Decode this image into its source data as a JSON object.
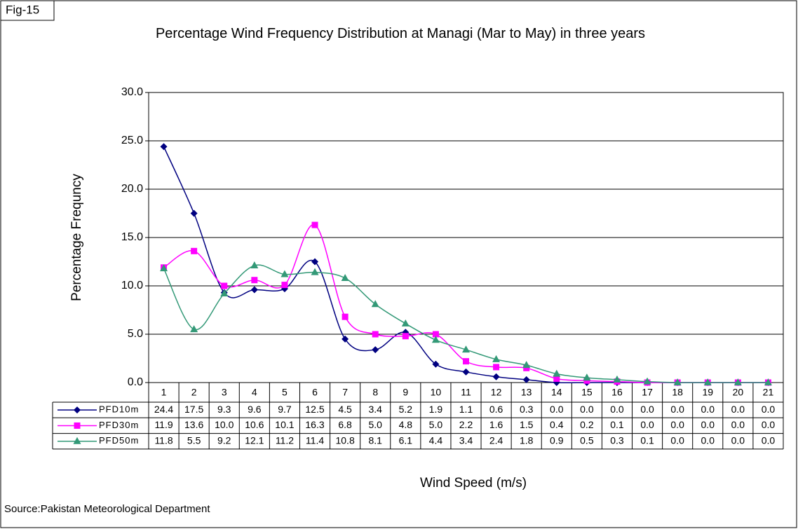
{
  "fig_label": "Fig-15",
  "source": "Source:Pakistan Meteorological Department",
  "chart_data": {
    "type": "line",
    "title": "Percentage Wind Frequency Distribution at Managi (Mar to May) in three years",
    "x_label": "Wind Speed (m/s)",
    "y_label": "Percentage Frequncy",
    "categories": [
      "1",
      "2",
      "3",
      "4",
      "5",
      "6",
      "7",
      "8",
      "9",
      "10",
      "11",
      "12",
      "13",
      "14",
      "15",
      "16",
      "17",
      "18",
      "19",
      "20",
      "21"
    ],
    "ylim": [
      0,
      30
    ],
    "yticks": [
      {
        "value": 0,
        "label": "0.0"
      },
      {
        "value": 5,
        "label": "5.0"
      },
      {
        "value": 10,
        "label": "10.0"
      },
      {
        "value": 15,
        "label": "15.0"
      },
      {
        "value": 20,
        "label": "20.0"
      },
      {
        "value": 25,
        "label": "25.0"
      },
      {
        "value": 30,
        "label": "30.0"
      }
    ],
    "grid": true,
    "series": [
      {
        "name": "PFD10m",
        "color": "#000080",
        "marker": "diamond",
        "values": [
          24.4,
          17.5,
          9.3,
          9.6,
          9.7,
          12.5,
          4.5,
          3.4,
          5.2,
          1.9,
          1.1,
          0.6,
          0.3,
          0,
          0,
          0,
          0,
          0,
          0,
          0,
          0
        ],
        "value_labels": [
          "24.4",
          "17.5",
          "9.3",
          "9.6",
          "9.7",
          "12.5",
          "4.5",
          "3.4",
          "5.2",
          "1.9",
          "1.1",
          "0.6",
          "0.3",
          "0.0",
          "0.0",
          "0.0",
          "0.0",
          "0.0",
          "0.0",
          "0.0",
          "0.0"
        ]
      },
      {
        "name": "PFD30m",
        "color": "#ff00ff",
        "marker": "square",
        "values": [
          11.9,
          13.6,
          10,
          10.6,
          10.1,
          16.3,
          6.8,
          5,
          4.8,
          5,
          2.2,
          1.6,
          1.5,
          0.4,
          0.2,
          0.1,
          0,
          0,
          0,
          0,
          0
        ],
        "value_labels": [
          "11.9",
          "13.6",
          "10.0",
          "10.6",
          "10.1",
          "16.3",
          "6.8",
          "5.0",
          "4.8",
          "5.0",
          "2.2",
          "1.6",
          "1.5",
          "0.4",
          "0.2",
          "0.1",
          "0.0",
          "0.0",
          "0.0",
          "0.0",
          "0.0"
        ]
      },
      {
        "name": "PFD50m",
        "color": "#339977",
        "marker": "triangle",
        "values": [
          11.8,
          5.5,
          9.2,
          12.1,
          11.2,
          11.4,
          10.8,
          8.1,
          6.1,
          4.4,
          3.4,
          2.4,
          1.8,
          0.9,
          0.5,
          0.3,
          0.1,
          0,
          0,
          0,
          0
        ],
        "value_labels": [
          "11.8",
          "5.5",
          "9.2",
          "12.1",
          "11.2",
          "11.4",
          "10.8",
          "8.1",
          "6.1",
          "4.4",
          "3.4",
          "2.4",
          "1.8",
          "0.9",
          "0.5",
          "0.3",
          "0.1",
          "0.0",
          "0.0",
          "0.0",
          "0.0"
        ]
      }
    ]
  }
}
